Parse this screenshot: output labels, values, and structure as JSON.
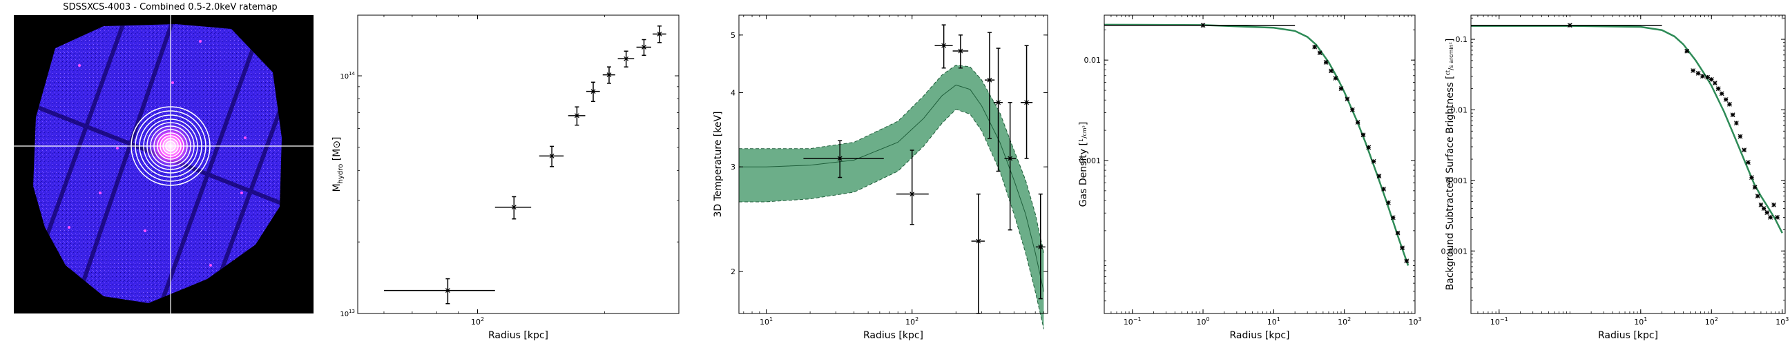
{
  "figure": {
    "ratemap": {
      "title": "SDSSXCS-4003 - Combined 0.5-2.0keV ratemap",
      "background_color": "#000000",
      "emission_color": "#4a2aff",
      "hot_color": "#ff40ff",
      "crosshair_color": "#ffffff",
      "aperture_color": "#ffffff"
    }
  },
  "chart_data": [
    {
      "type": "scatter",
      "panel": "hydrostatic-mass",
      "xlabel": "Radius [kpc]",
      "ylabel_main": "M",
      "ylabel_sub": "hydro",
      "ylabel_unit": "[M⊙]",
      "xscale": "log",
      "yscale": "log",
      "xlim": [
        52,
        300
      ],
      "ylim": [
        10000000000000.0,
        180000000000000.0
      ],
      "xticks": [
        {
          "value": 100,
          "label": "10",
          "exp": "2"
        }
      ],
      "yticks": [
        {
          "value": 10000000000000.0,
          "label": "10",
          "exp": "13"
        },
        {
          "value": 100000000000000.0,
          "label": "10",
          "exp": "14"
        }
      ],
      "points": [
        {
          "x": 85,
          "y": 12500000000000.0,
          "xerr": [
            25,
            25
          ],
          "yerr": [
            1500000000000.0,
            1500000000000.0
          ]
        },
        {
          "x": 122,
          "y": 28000000000000.0,
          "xerr": [
            12,
            12
          ],
          "yerr": [
            3000000000000.0,
            3000000000000.0
          ]
        },
        {
          "x": 150,
          "y": 46000000000000.0,
          "xerr": [
            10,
            10
          ],
          "yerr": [
            4500000000000.0,
            4500000000000.0
          ]
        },
        {
          "x": 172,
          "y": 68000000000000.0,
          "xerr": [
            8,
            8
          ],
          "yerr": [
            6000000000000.0,
            6000000000000.0
          ]
        },
        {
          "x": 188,
          "y": 86000000000000.0,
          "xerr": [
            7,
            7
          ],
          "yerr": [
            8000000000000.0,
            8000000000000.0
          ]
        },
        {
          "x": 205,
          "y": 101000000000000.0,
          "xerr": [
            7,
            7
          ],
          "yerr": [
            8000000000000.0,
            8000000000000.0
          ]
        },
        {
          "x": 225,
          "y": 118000000000000.0,
          "xerr": [
            10,
            10
          ],
          "yerr": [
            9000000000000.0,
            9000000000000.0
          ]
        },
        {
          "x": 248,
          "y": 132000000000000.0,
          "xerr": [
            10,
            10
          ],
          "yerr": [
            10000000000000.0,
            10000000000000.0
          ]
        },
        {
          "x": 270,
          "y": 150000000000000.0,
          "xerr": [
            10,
            10
          ],
          "yerr": [
            12000000000000.0,
            12000000000000.0
          ]
        }
      ]
    },
    {
      "type": "scatter",
      "panel": "temperature",
      "xlabel": "Radius [kpc]",
      "ylabel": "3D Temperature [keV]",
      "xscale": "log",
      "yscale": "log",
      "xlim": [
        6.5,
        850
      ],
      "ylim": [
        1.7,
        5.4
      ],
      "xticks": [
        {
          "value": 10,
          "label": "10",
          "exp": "1"
        },
        {
          "value": 100,
          "label": "10",
          "exp": "2"
        }
      ],
      "yticks": [
        {
          "value": 2,
          "label": "2"
        },
        {
          "value": 3,
          "label": "3"
        },
        {
          "value": 4,
          "label": "4"
        },
        {
          "value": 5,
          "label": "5"
        }
      ],
      "band_color": "#2e8b57",
      "model": {
        "x": [
          6.5,
          10,
          20,
          40,
          80,
          120,
          160,
          200,
          250,
          300,
          400,
          500,
          600,
          700,
          800
        ],
        "center": [
          3.0,
          3.0,
          3.02,
          3.08,
          3.3,
          3.62,
          3.95,
          4.12,
          4.05,
          3.8,
          3.3,
          2.85,
          2.5,
          2.15,
          1.85
        ],
        "lower": [
          2.62,
          2.62,
          2.65,
          2.72,
          2.95,
          3.25,
          3.55,
          3.75,
          3.68,
          3.45,
          2.95,
          2.5,
          2.15,
          1.85,
          1.6
        ],
        "upper": [
          3.22,
          3.22,
          3.22,
          3.3,
          3.58,
          3.95,
          4.28,
          4.45,
          4.42,
          4.2,
          3.7,
          3.2,
          2.85,
          2.5,
          2.15
        ]
      },
      "points": [
        {
          "x": 32,
          "y": 3.1,
          "xerr": [
            14,
            32
          ],
          "yerr": [
            0.22,
            0.22
          ]
        },
        {
          "x": 100,
          "y": 2.7,
          "xerr": [
            22,
            30
          ],
          "yerr": [
            0.3,
            0.5
          ]
        },
        {
          "x": 165,
          "y": 4.8,
          "xerr": [
            22,
            25
          ],
          "yerr": [
            0.4,
            0.4
          ]
        },
        {
          "x": 215,
          "y": 4.7,
          "xerr": [
            25,
            28
          ],
          "yerr": [
            0.3,
            0.3
          ]
        },
        {
          "x": 285,
          "y": 2.25,
          "xerr": [
            30,
            30
          ],
          "yerr": [
            0.55,
            0.45
          ]
        },
        {
          "x": 340,
          "y": 4.2,
          "xerr": [
            25,
            28
          ],
          "yerr": [
            0.85,
            0.85
          ]
        },
        {
          "x": 390,
          "y": 3.85,
          "xerr": [
            28,
            28
          ],
          "yerr": [
            0.9,
            0.9
          ]
        },
        {
          "x": 470,
          "y": 3.1,
          "xerr": [
            40,
            45
          ],
          "yerr": [
            0.75,
            0.75
          ]
        },
        {
          "x": 610,
          "y": 3.85,
          "xerr": [
            55,
            60
          ],
          "yerr": [
            0.75,
            0.95
          ]
        },
        {
          "x": 760,
          "y": 2.2,
          "xerr": [
            55,
            60
          ],
          "yerr": [
            0.4,
            0.5
          ]
        }
      ]
    },
    {
      "type": "line",
      "panel": "gas-density",
      "xlabel": "Radius [kpc]",
      "ylabel": "Gas Density",
      "ylabel_unit_top": "1",
      "ylabel_unit_bottom": "cm³",
      "xscale": "log",
      "yscale": "log",
      "xlim": [
        0.04,
        1000
      ],
      "ylim": [
        3e-05,
        0.028
      ],
      "xticks": [
        {
          "value": 0.1,
          "label": "10",
          "exp": "−1"
        },
        {
          "value": 1,
          "label": "10",
          "exp": "0"
        },
        {
          "value": 10,
          "label": "10",
          "exp": "1"
        },
        {
          "value": 100,
          "label": "10",
          "exp": "2"
        },
        {
          "value": 1000,
          "label": "10",
          "exp": "3"
        }
      ],
      "yticks": [
        {
          "value": 0.001,
          "label": "0.001"
        },
        {
          "value": 0.01,
          "label": "0.01"
        }
      ],
      "model_color": "#2e8b57",
      "model": {
        "x": [
          0.04,
          1,
          10,
          20,
          30,
          40,
          60,
          80,
          100,
          150,
          200,
          300,
          400,
          600,
          800
        ],
        "y": [
          0.0225,
          0.0223,
          0.021,
          0.0195,
          0.017,
          0.0142,
          0.0095,
          0.0066,
          0.0048,
          0.0025,
          0.0015,
          0.00068,
          0.00038,
          0.00016,
          9e-05
        ]
      },
      "points": [
        {
          "x": 1.0,
          "y": 0.0222,
          "xerr": [
            0.96,
            19
          ]
        },
        {
          "x": 38,
          "y": 0.0135
        },
        {
          "x": 45,
          "y": 0.0118
        },
        {
          "x": 55,
          "y": 0.0095
        },
        {
          "x": 65,
          "y": 0.0078
        },
        {
          "x": 75,
          "y": 0.0066
        },
        {
          "x": 90,
          "y": 0.0052
        },
        {
          "x": 110,
          "y": 0.0041
        },
        {
          "x": 130,
          "y": 0.0032
        },
        {
          "x": 155,
          "y": 0.0024
        },
        {
          "x": 185,
          "y": 0.0018
        },
        {
          "x": 220,
          "y": 0.00135
        },
        {
          "x": 260,
          "y": 0.00098
        },
        {
          "x": 310,
          "y": 0.0007
        },
        {
          "x": 360,
          "y": 0.00052
        },
        {
          "x": 420,
          "y": 0.00038
        },
        {
          "x": 490,
          "y": 0.00027
        },
        {
          "x": 570,
          "y": 0.00019
        },
        {
          "x": 660,
          "y": 0.000135
        },
        {
          "x": 760,
          "y": 0.0001
        }
      ]
    },
    {
      "type": "line",
      "panel": "surface-brightness",
      "xlabel": "Radius [kpc]",
      "ylabel": "Background Subtracted Surface Brightness",
      "ylabel_unit_top": "ct",
      "ylabel_unit_bottom": "s arcmin²",
      "xscale": "log",
      "yscale": "log",
      "xlim": [
        0.04,
        1100
      ],
      "ylim": [
        1.3e-05,
        0.22
      ],
      "xticks": [
        {
          "value": 0.1,
          "label": "10",
          "exp": "−1"
        },
        {
          "value": 10,
          "label": "10",
          "exp": "1"
        },
        {
          "value": 100,
          "label": "10",
          "exp": "2"
        },
        {
          "value": 1000,
          "label": "10",
          "exp": "3"
        }
      ],
      "yticks": [
        {
          "value": 0.0001,
          "label": "0.0001"
        },
        {
          "value": 0.001,
          "label": "0.001"
        },
        {
          "value": 0.01,
          "label": "0.01"
        },
        {
          "value": 0.1,
          "label": "0.1"
        }
      ],
      "model_color": "#2e8b57",
      "model": {
        "x": [
          0.04,
          1,
          10,
          20,
          30,
          40,
          60,
          80,
          100,
          150,
          200,
          300,
          400,
          500,
          600,
          800,
          1000
        ],
        "y": [
          0.155,
          0.155,
          0.15,
          0.135,
          0.11,
          0.085,
          0.05,
          0.032,
          0.022,
          0.0095,
          0.0048,
          0.0018,
          0.0009,
          0.0006,
          0.00045,
          0.00028,
          0.00018
        ]
      },
      "points": [
        {
          "x": 1.0,
          "y": 0.158,
          "xerr": [
            0.96,
            19
          ]
        },
        {
          "x": 45,
          "y": 0.068
        },
        {
          "x": 55,
          "y": 0.036
        },
        {
          "x": 65,
          "y": 0.033
        },
        {
          "x": 75,
          "y": 0.03
        },
        {
          "x": 88,
          "y": 0.029
        },
        {
          "x": 100,
          "y": 0.027
        },
        {
          "x": 112,
          "y": 0.024
        },
        {
          "x": 125,
          "y": 0.02
        },
        {
          "x": 140,
          "y": 0.017
        },
        {
          "x": 160,
          "y": 0.014
        },
        {
          "x": 180,
          "y": 0.012
        },
        {
          "x": 200,
          "y": 0.0085
        },
        {
          "x": 225,
          "y": 0.0065
        },
        {
          "x": 255,
          "y": 0.0042
        },
        {
          "x": 290,
          "y": 0.0027
        },
        {
          "x": 330,
          "y": 0.0018
        },
        {
          "x": 370,
          "y": 0.0011
        },
        {
          "x": 410,
          "y": 0.0008
        },
        {
          "x": 450,
          "y": 0.0006
        },
        {
          "x": 500,
          "y": 0.00045
        },
        {
          "x": 550,
          "y": 0.0004
        },
        {
          "x": 610,
          "y": 0.00035
        },
        {
          "x": 680,
          "y": 0.0003
        },
        {
          "x": 760,
          "y": 0.00045
        },
        {
          "x": 850,
          "y": 0.0003
        }
      ]
    }
  ]
}
